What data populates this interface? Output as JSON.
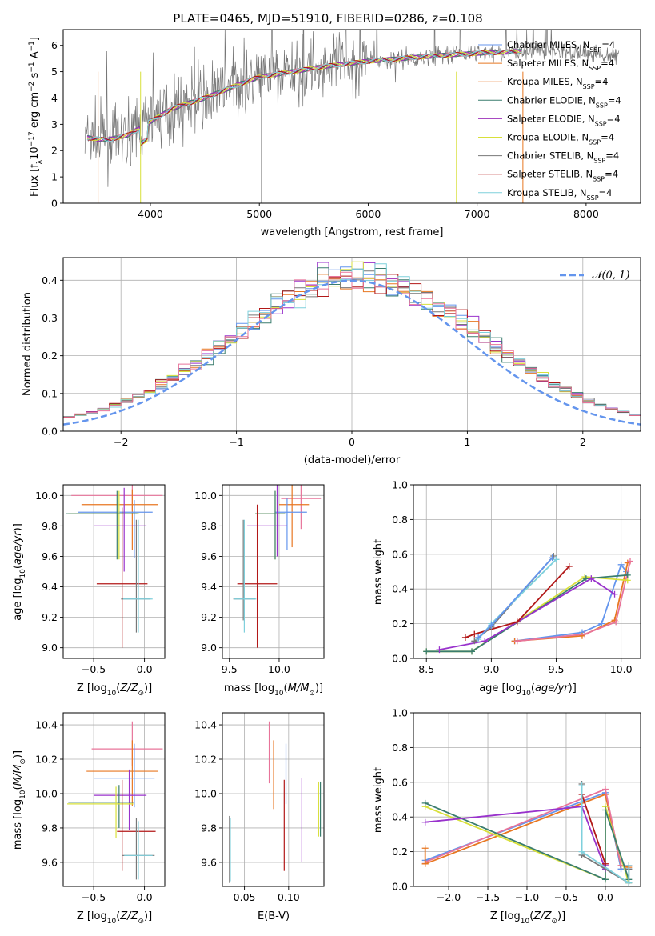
{
  "colors": {
    "c0": "#6495ed",
    "c1": "#9932cc",
    "c2": "#e87722",
    "c3": "#3a7d6e",
    "c4": "#9b30b9",
    "c5": "#d8e03a",
    "c6": "#777777",
    "c7": "#b21818",
    "c8": "#7fd0dc",
    "pink": "#e8749a"
  },
  "chart_data": [
    {
      "id": "spectrum",
      "type": "line",
      "title": "PLATE=0465, MJD=51910, FIBERID=0286, z=0.108",
      "xlabel": "wavelength [Angstrom, rest frame]",
      "ylabel": "Flux [f_λ 10^-17 erg cm^-2 s^-1 A^-1]",
      "xlim": [
        3200,
        8500
      ],
      "ylim": [
        0,
        6.6
      ],
      "xticks": [
        "4000",
        "5000",
        "6000",
        "7000",
        "8000"
      ],
      "yticks": [
        "0",
        "1",
        "2",
        "3",
        "4",
        "5",
        "6"
      ],
      "grid": false,
      "legend_position": "top-right",
      "legend": [
        "Chabrier MILES, N_SSP=4",
        "Salpeter MILES, N_SSP=4",
        "Kroupa MILES, N_SSP=4",
        "Chabrier ELODIE, N_SSP=4",
        "Salpeter ELODIE, N_SSP=4",
        "Kroupa ELODIE, N_SSP=4",
        "Chabrier STELIB, N_SSP=4",
        "Salpeter STELIB, N_SSP=4",
        "Kroupa STELIB, N_SSP=4"
      ],
      "continuum_x": [
        3400,
        3600,
        3800,
        4000,
        4200,
        4500,
        4800,
        5000,
        5300,
        5600,
        6000,
        6300,
        6600,
        7000,
        7300,
        7600,
        8000,
        8300
      ],
      "continuum_y": [
        2.5,
        2.4,
        2.6,
        3.1,
        3.6,
        4.0,
        4.5,
        4.8,
        5.0,
        5.2,
        5.4,
        5.5,
        5.6,
        5.7,
        5.75,
        5.8,
        5.7,
        5.6
      ]
    },
    {
      "id": "residuals",
      "type": "histogram",
      "xlabel": "(data-model)/error",
      "ylabel": "Normed distribution",
      "xlim": [
        -2.5,
        2.5
      ],
      "ylim": [
        0,
        0.46
      ],
      "xticks": [
        "−2",
        "−1",
        "0",
        "1",
        "2"
      ],
      "yticks": [
        "0.0",
        "0.1",
        "0.2",
        "0.3",
        "0.4"
      ],
      "grid": true,
      "legend_position": "top-right",
      "legend": [
        "N(0,1)"
      ],
      "bin_width": 0.1,
      "reference": "normal pdf mean 0 sigma 1"
    },
    {
      "id": "age-vs-Z",
      "type": "errorbar",
      "xlabel": "Z [log10(Z/Z☉)]",
      "ylabel": "age  [log10(age/yr)]",
      "xlim": [
        -0.8,
        0.2
      ],
      "ylim": [
        8.93,
        10.07
      ],
      "xticks": [
        "−0.5",
        "0.0"
      ],
      "yticks": [
        "9.0",
        "9.2",
        "9.4",
        "9.6",
        "9.8",
        "10.0"
      ],
      "grid": true,
      "points": [
        {
          "x": -0.12,
          "y": 10.0,
          "xerr": [
            0.6,
            0.3
          ],
          "yerr": [
            0.1,
            0.1
          ],
          "c": "pink"
        },
        {
          "x": -0.12,
          "y": 9.94,
          "xerr": [
            0.5,
            0.25
          ],
          "yerr": [
            0.3,
            0.1
          ],
          "c": "c2"
        },
        {
          "x": -0.1,
          "y": 9.89,
          "xerr": [
            0.55,
            0.18
          ],
          "yerr": [
            0.3,
            0.08
          ],
          "c": "c0"
        },
        {
          "x": -0.25,
          "y": 9.88,
          "xerr": [
            0.5,
            0.2
          ],
          "yerr": [
            0.3,
            0.15
          ],
          "c": "c5"
        },
        {
          "x": -0.27,
          "y": 9.88,
          "xerr": [
            0.5,
            0.2
          ],
          "yerr": [
            0.3,
            0.15
          ],
          "c": "c3"
        },
        {
          "x": -0.2,
          "y": 9.8,
          "xerr": [
            0.3,
            0.22
          ],
          "yerr": [
            0.3,
            0.25
          ],
          "c": "c1"
        },
        {
          "x": -0.22,
          "y": 9.42,
          "xerr": [
            0.25,
            0.25
          ],
          "yerr": [
            0.42,
            0.5
          ],
          "c": "c7"
        },
        {
          "x": -0.08,
          "y": 9.32,
          "xerr": [
            0.15,
            0.14
          ],
          "yerr": [
            0.22,
            0.52
          ],
          "c": "c6"
        },
        {
          "x": -0.06,
          "y": 9.32,
          "xerr": [
            0.15,
            0.14
          ],
          "yerr": [
            0.22,
            0.52
          ],
          "c": "c8"
        }
      ]
    },
    {
      "id": "age-vs-mass",
      "type": "errorbar",
      "xlabel": "mass [log10(M/M☉)]",
      "ylabel": "",
      "xlim": [
        9.43,
        10.45
      ],
      "ylim": [
        8.93,
        10.07
      ],
      "xticks": [
        "9.5",
        "10.0"
      ],
      "yticks": [
        "9.0",
        "9.2",
        "9.4",
        "9.6",
        "9.8",
        "10.0"
      ],
      "grid": true,
      "points": [
        {
          "x": 10.22,
          "y": 9.98,
          "xerr": [
            0.2,
            0.2
          ],
          "yerr": [
            0.2,
            0.12
          ],
          "c": "pink"
        },
        {
          "x": 10.13,
          "y": 9.94,
          "xerr": [
            0.13,
            0.17
          ],
          "yerr": [
            0.28,
            0.14
          ],
          "c": "c2"
        },
        {
          "x": 10.08,
          "y": 9.89,
          "xerr": [
            0.12,
            0.2
          ],
          "yerr": [
            0.25,
            0.09
          ],
          "c": "c0"
        },
        {
          "x": 9.96,
          "y": 9.88,
          "xerr": [
            0.2,
            0.1
          ],
          "yerr": [
            0.3,
            0.15
          ],
          "c": "c5"
        },
        {
          "x": 9.96,
          "y": 9.88,
          "xerr": [
            0.2,
            0.1
          ],
          "yerr": [
            0.3,
            0.15
          ],
          "c": "c3"
        },
        {
          "x": 9.98,
          "y": 9.8,
          "xerr": [
            0.3,
            0.1
          ],
          "yerr": [
            0.2,
            0.3
          ],
          "c": "c1"
        },
        {
          "x": 9.78,
          "y": 9.42,
          "xerr": [
            0.2,
            0.2
          ],
          "yerr": [
            0.42,
            0.52
          ],
          "c": "c7"
        },
        {
          "x": 9.64,
          "y": 9.32,
          "xerr": [
            0.1,
            0.12
          ],
          "yerr": [
            0.14,
            0.52
          ],
          "c": "c6"
        },
        {
          "x": 9.65,
          "y": 9.32,
          "xerr": [
            0.1,
            0.12
          ],
          "yerr": [
            0.22,
            0.52
          ],
          "c": "c8"
        }
      ]
    },
    {
      "id": "weight-vs-age",
      "type": "line",
      "xlabel": "age  [log10(age/yr)]",
      "ylabel": "mass weight",
      "xlim": [
        8.4,
        10.15
      ],
      "ylim": [
        0,
        1.0
      ],
      "xticks": [
        "8.5",
        "9.0",
        "9.5",
        "10.0"
      ],
      "yticks": [
        "0.0",
        "0.2",
        "0.4",
        "0.6",
        "0.8",
        "1.0"
      ],
      "grid": true,
      "series": [
        {
          "c": "c0",
          "x": [
            9.18,
            9.7,
            9.85,
            10.0,
            10.04
          ],
          "y": [
            0.1,
            0.15,
            0.2,
            0.54,
            0.5
          ]
        },
        {
          "c": "c2",
          "x": [
            9.18,
            9.7,
            9.95,
            10.05
          ],
          "y": [
            0.1,
            0.13,
            0.22,
            0.55
          ]
        },
        {
          "c": "pink",
          "x": [
            9.2,
            9.72,
            9.96,
            10.07
          ],
          "y": [
            0.1,
            0.14,
            0.21,
            0.56
          ]
        },
        {
          "c": "c5",
          "x": [
            8.5,
            8.85,
            9.72,
            10.05
          ],
          "y": [
            0.04,
            0.04,
            0.47,
            0.45
          ]
        },
        {
          "c": "c3",
          "x": [
            8.5,
            8.85,
            9.73,
            10.05
          ],
          "y": [
            0.04,
            0.04,
            0.46,
            0.48
          ]
        },
        {
          "c": "c1",
          "x": [
            8.6,
            8.95,
            9.77,
            9.95
          ],
          "y": [
            0.05,
            0.1,
            0.46,
            0.37
          ]
        },
        {
          "c": "c7",
          "x": [
            8.8,
            8.87,
            9.2,
            9.6
          ],
          "y": [
            0.12,
            0.14,
            0.21,
            0.53
          ]
        },
        {
          "c": "c6",
          "x": [
            8.87,
            9.0,
            9.48
          ],
          "y": [
            0.1,
            0.18,
            0.59
          ]
        },
        {
          "c": "c8",
          "x": [
            8.9,
            9.0,
            9.5
          ],
          "y": [
            0.11,
            0.2,
            0.57
          ]
        },
        {
          "c": "c0",
          "x": [
            8.9,
            9.0,
            9.47
          ],
          "y": [
            0.12,
            0.19,
            0.58
          ]
        }
      ]
    },
    {
      "id": "mass-vs-Z",
      "type": "errorbar",
      "xlabel": "Z [log10(Z/Z☉)]",
      "ylabel": "mass [log10(M/M☉)]",
      "xlim": [
        -0.8,
        0.2
      ],
      "ylim": [
        9.46,
        10.47
      ],
      "xticks": [
        "−0.5",
        "0.0"
      ],
      "yticks": [
        "9.6",
        "9.8",
        "10.0",
        "10.2",
        "10.4"
      ],
      "grid": true,
      "points": [
        {
          "x": -0.12,
          "y": 10.26,
          "xerr": [
            0.4,
            0.3
          ],
          "yerr": [
            0.1,
            0.16
          ],
          "c": "pink"
        },
        {
          "x": -0.12,
          "y": 10.13,
          "xerr": [
            0.45,
            0.25
          ],
          "yerr": [
            0.2,
            0.18
          ],
          "c": "c2"
        },
        {
          "x": -0.1,
          "y": 10.09,
          "xerr": [
            0.4,
            0.2
          ],
          "yerr": [
            0.17,
            0.2
          ],
          "c": "c0"
        },
        {
          "x": -0.15,
          "y": 9.99,
          "xerr": [
            0.35,
            0.17
          ],
          "yerr": [
            0.2,
            0.15
          ],
          "c": "c1"
        },
        {
          "x": -0.25,
          "y": 9.95,
          "xerr": [
            0.5,
            0.15
          ],
          "yerr": [
            0.15,
            0.1
          ],
          "c": "c3"
        },
        {
          "x": -0.28,
          "y": 9.94,
          "xerr": [
            0.48,
            0.17
          ],
          "yerr": [
            0.2,
            0.1
          ],
          "c": "c5"
        },
        {
          "x": -0.22,
          "y": 9.78,
          "xerr": [
            0.05,
            0.33
          ],
          "yerr": [
            0.23,
            0.3
          ],
          "c": "c7"
        },
        {
          "x": -0.08,
          "y": 9.64,
          "xerr": [
            0.14,
            0.18
          ],
          "yerr": [
            0.14,
            0.22
          ],
          "c": "c6"
        },
        {
          "x": -0.06,
          "y": 9.64,
          "xerr": [
            0.14,
            0.14
          ],
          "yerr": [
            0.14,
            0.2
          ],
          "c": "c8"
        }
      ]
    },
    {
      "id": "mass-vs-EBV",
      "type": "errorbar",
      "xlabel": "E(B-V)",
      "ylabel": "",
      "xlim": [
        0.025,
        0.14
      ],
      "ylim": [
        9.46,
        10.47
      ],
      "xticks": [
        "0.05",
        "0.10"
      ],
      "yticks": [
        "9.6",
        "9.8",
        "10.0",
        "10.2",
        "10.4"
      ],
      "grid": true,
      "points": [
        {
          "x": 0.078,
          "y": 10.26,
          "xerr": [
            0,
            0
          ],
          "yerr": [
            0.2,
            0.16
          ],
          "c": "pink"
        },
        {
          "x": 0.083,
          "y": 10.13,
          "xerr": [
            0,
            0
          ],
          "yerr": [
            0.22,
            0.18
          ],
          "c": "c2"
        },
        {
          "x": 0.097,
          "y": 10.09,
          "xerr": [
            0,
            0
          ],
          "yerr": [
            0.15,
            0.2
          ],
          "c": "c0"
        },
        {
          "x": 0.115,
          "y": 9.95,
          "xerr": [
            0,
            0
          ],
          "yerr": [
            0.35,
            0.14
          ],
          "c": "c1"
        },
        {
          "x": 0.095,
          "y": 9.8,
          "xerr": [
            0,
            0
          ],
          "yerr": [
            0.25,
            0.28
          ],
          "c": "c7"
        },
        {
          "x": 0.134,
          "y": 9.9,
          "xerr": [
            0,
            0
          ],
          "yerr": [
            0.15,
            0.17
          ],
          "c": "c5"
        },
        {
          "x": 0.136,
          "y": 9.92,
          "xerr": [
            0,
            0
          ],
          "yerr": [
            0.17,
            0.15
          ],
          "c": "c3"
        },
        {
          "x": 0.033,
          "y": 9.65,
          "xerr": [
            0,
            0
          ],
          "yerr": [
            0.17,
            0.22
          ],
          "c": "c6"
        },
        {
          "x": 0.034,
          "y": 9.66,
          "xerr": [
            0,
            0
          ],
          "yerr": [
            0.17,
            0.2
          ],
          "c": "c8"
        }
      ]
    },
    {
      "id": "weight-vs-Z",
      "type": "line",
      "xlabel": "Z [log10(Z/Z☉)]",
      "ylabel": "mass weight",
      "xlim": [
        -2.45,
        0.45
      ],
      "ylim": [
        0,
        1.0
      ],
      "xticks": [
        "−2.0",
        "−1.5",
        "−1.0",
        "−0.5",
        "0.0"
      ],
      "yticks": [
        "0.0",
        "0.2",
        "0.4",
        "0.6",
        "0.8",
        "1.0"
      ],
      "grid": true,
      "series": [
        {
          "c": "c0",
          "x": [
            -2.3,
            0.0,
            0.2,
            0.3
          ],
          "y": [
            0.15,
            0.54,
            0.1,
            0.1
          ]
        },
        {
          "c": "c2",
          "x": [
            -2.3,
            0.0,
            0.2,
            0.3
          ],
          "y": [
            0.13,
            0.53,
            0.12,
            0.11
          ]
        },
        {
          "c": "pink",
          "x": [
            -2.3,
            0.0,
            0.2,
            0.3
          ],
          "y": [
            0.14,
            0.56,
            0.12,
            0.12
          ]
        },
        {
          "c": "c2",
          "x": [
            -2.3,
            -2.3
          ],
          "y": [
            0.22,
            0.13
          ]
        },
        {
          "c": "c5",
          "x": [
            -2.3,
            0.0,
            0.0,
            0.3
          ],
          "y": [
            0.46,
            0.04,
            0.46,
            0.02
          ]
        },
        {
          "c": "c3",
          "x": [
            -2.3,
            0.0,
            0.0,
            0.3
          ],
          "y": [
            0.48,
            0.04,
            0.44,
            0.04
          ]
        },
        {
          "c": "c1",
          "x": [
            -2.3,
            -0.3,
            0.0,
            0.0
          ],
          "y": [
            0.37,
            0.46,
            0.1,
            0.12
          ]
        },
        {
          "c": "c7",
          "x": [
            -0.3,
            0.0
          ],
          "y": [
            0.53,
            0.13
          ]
        },
        {
          "c": "c6",
          "x": [
            -0.3,
            -0.3,
            0.3,
            0.3
          ],
          "y": [
            0.59,
            0.18,
            0.02,
            0.1
          ]
        },
        {
          "c": "c8",
          "x": [
            -0.3,
            -0.3,
            0.3,
            0.3
          ],
          "y": [
            0.58,
            0.2,
            0.02,
            0.12
          ]
        }
      ]
    }
  ]
}
